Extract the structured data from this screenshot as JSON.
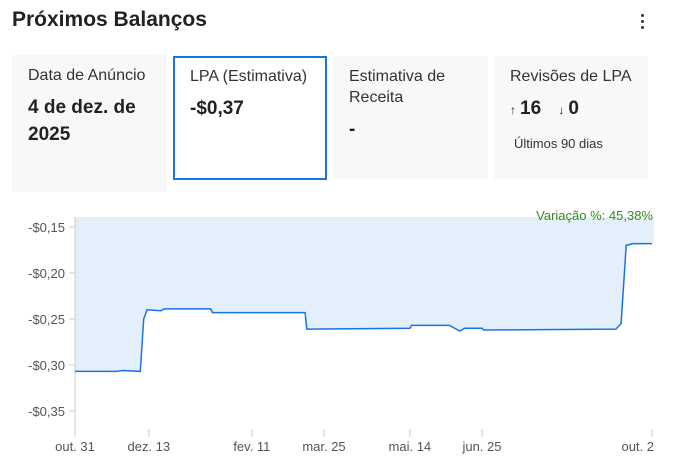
{
  "header": {
    "title": "Próximos Balanços",
    "menu_icon": "more-vert-icon"
  },
  "cards": [
    {
      "label": "Data de Anúncio",
      "value": "4 de dez. de 2025"
    },
    {
      "label": "LPA (Estimativa)",
      "value": "-$0,37"
    },
    {
      "label": "Estimativa de Receita",
      "value": "-"
    },
    {
      "label": "Revisões de LPA",
      "up_icon": "arrow-up-icon",
      "up": "16",
      "down_icon": "arrow-down-icon",
      "down": "0",
      "sub": "Últimos 90 dias"
    }
  ],
  "accent": "#1a73e8",
  "chart_data": {
    "type": "area",
    "annotation": "Variação %: 45,38%",
    "x_ticks": [
      {
        "label": "out. 31",
        "date": "2024-10-31"
      },
      {
        "label": "dez. 13",
        "date": "2024-12-13"
      },
      {
        "label": "fev. 11",
        "date": "2025-02-11"
      },
      {
        "label": "mar. 25",
        "date": "2025-03-25"
      },
      {
        "label": "mai. 14",
        "date": "2025-05-14"
      },
      {
        "label": "jun. 25",
        "date": "2025-06-25"
      },
      {
        "label": "out. 2",
        "date": "2025-10-02"
      }
    ],
    "y_ticks": [
      {
        "label": "-$0,15",
        "value": -0.15
      },
      {
        "label": "-$0,20",
        "value": -0.2
      },
      {
        "label": "-$0,25",
        "value": -0.25
      },
      {
        "label": "-$0,30",
        "value": -0.3
      },
      {
        "label": "-$0,35",
        "value": -0.35
      }
    ],
    "ylim": [
      -0.375,
      -0.139
    ],
    "xlim": [
      "2024-10-31",
      "2025-10-02"
    ],
    "line_color": "#1a73e8",
    "fill_color": "#e3effb",
    "points": [
      [
        "2024-10-31",
        -0.307
      ],
      [
        "2024-11-24",
        -0.307
      ],
      [
        "2024-11-28",
        -0.306
      ],
      [
        "2024-12-08",
        -0.307
      ],
      [
        "2024-12-10",
        -0.25
      ],
      [
        "2024-12-12",
        -0.24
      ],
      [
        "2024-12-20",
        -0.241
      ],
      [
        "2024-12-22",
        -0.239
      ],
      [
        "2025-01-18",
        -0.239
      ],
      [
        "2025-01-19",
        -0.243
      ],
      [
        "2025-03-14",
        -0.243
      ],
      [
        "2025-03-15",
        -0.261
      ],
      [
        "2025-05-14",
        -0.26
      ],
      [
        "2025-05-15",
        -0.257
      ],
      [
        "2025-06-06",
        -0.257
      ],
      [
        "2025-06-12",
        -0.263
      ],
      [
        "2025-06-15",
        -0.26
      ],
      [
        "2025-06-25",
        -0.26
      ],
      [
        "2025-06-26",
        -0.262
      ],
      [
        "2025-09-11",
        -0.261
      ],
      [
        "2025-09-14",
        -0.255
      ],
      [
        "2025-09-17",
        -0.17
      ],
      [
        "2025-09-21",
        -0.168
      ],
      [
        "2025-10-02",
        -0.168
      ]
    ]
  }
}
